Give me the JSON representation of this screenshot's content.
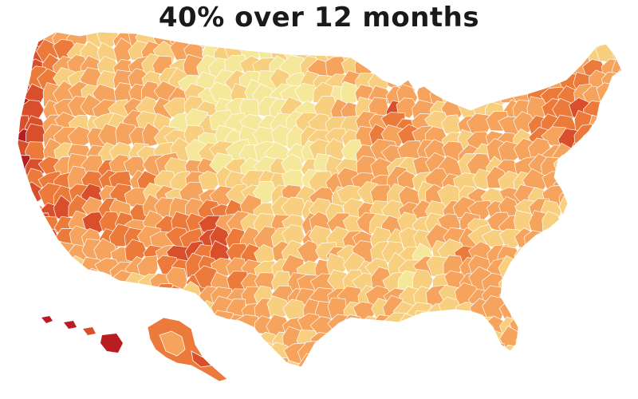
{
  "title": "40% over 12 months",
  "colors": {
    "scale": [
      "#f6e89a",
      "#f7cf7f",
      "#f5a35d",
      "#ec7a3a",
      "#d94f2b",
      "#b81d22",
      "#96101d"
    ],
    "border": "#ffffff",
    "background": "#ffffff"
  }
}
